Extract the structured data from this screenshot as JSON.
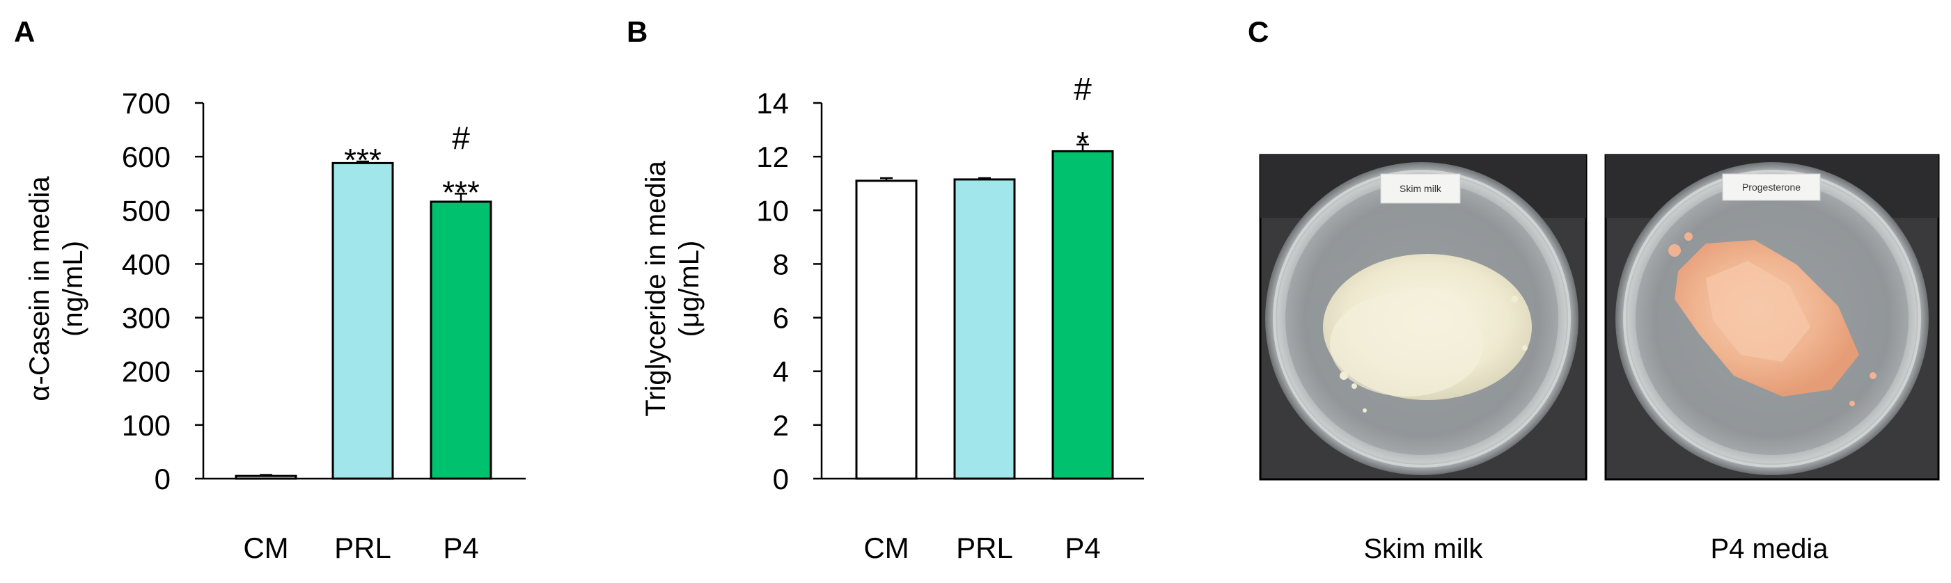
{
  "panels": {
    "a": "A",
    "b": "B",
    "c": "C"
  },
  "chart_data": [
    {
      "type": "bar",
      "panel": "A",
      "categories": [
        "CM",
        "PRL",
        "P4"
      ],
      "values": [
        5,
        588,
        516
      ],
      "errors": [
        2,
        3,
        15
      ],
      "colors": [
        "#ffffff",
        "#a0e6ea",
        "#00c16e"
      ],
      "significance": [
        [],
        [
          "***"
        ],
        [
          "***",
          "#"
        ]
      ],
      "ylabel": [
        "α-Casein in media",
        "(ng/mL)"
      ],
      "ylim": [
        0,
        700
      ],
      "yticks": [
        0,
        100,
        200,
        300,
        400,
        500,
        600,
        700
      ]
    },
    {
      "type": "bar",
      "panel": "B",
      "categories": [
        "CM",
        "PRL",
        "P4"
      ],
      "values": [
        11.1,
        11.15,
        12.2
      ],
      "errors": [
        0.1,
        0.05,
        0.25
      ],
      "colors": [
        "#ffffff",
        "#a0e6ea",
        "#00c16e"
      ],
      "significance": [
        [],
        [],
        [
          "*",
          "#"
        ]
      ],
      "ylabel": [
        "Triglyceride in media",
        "(μg/mL)"
      ],
      "ylim": [
        0,
        14
      ],
      "yticks": [
        0,
        2,
        4,
        6,
        8,
        10,
        12,
        14
      ]
    }
  ],
  "photos": {
    "left": {
      "tag": "Skim milk",
      "caption": "Skim milk"
    },
    "right": {
      "tag": "Progesterone",
      "caption": "P4 media"
    }
  }
}
